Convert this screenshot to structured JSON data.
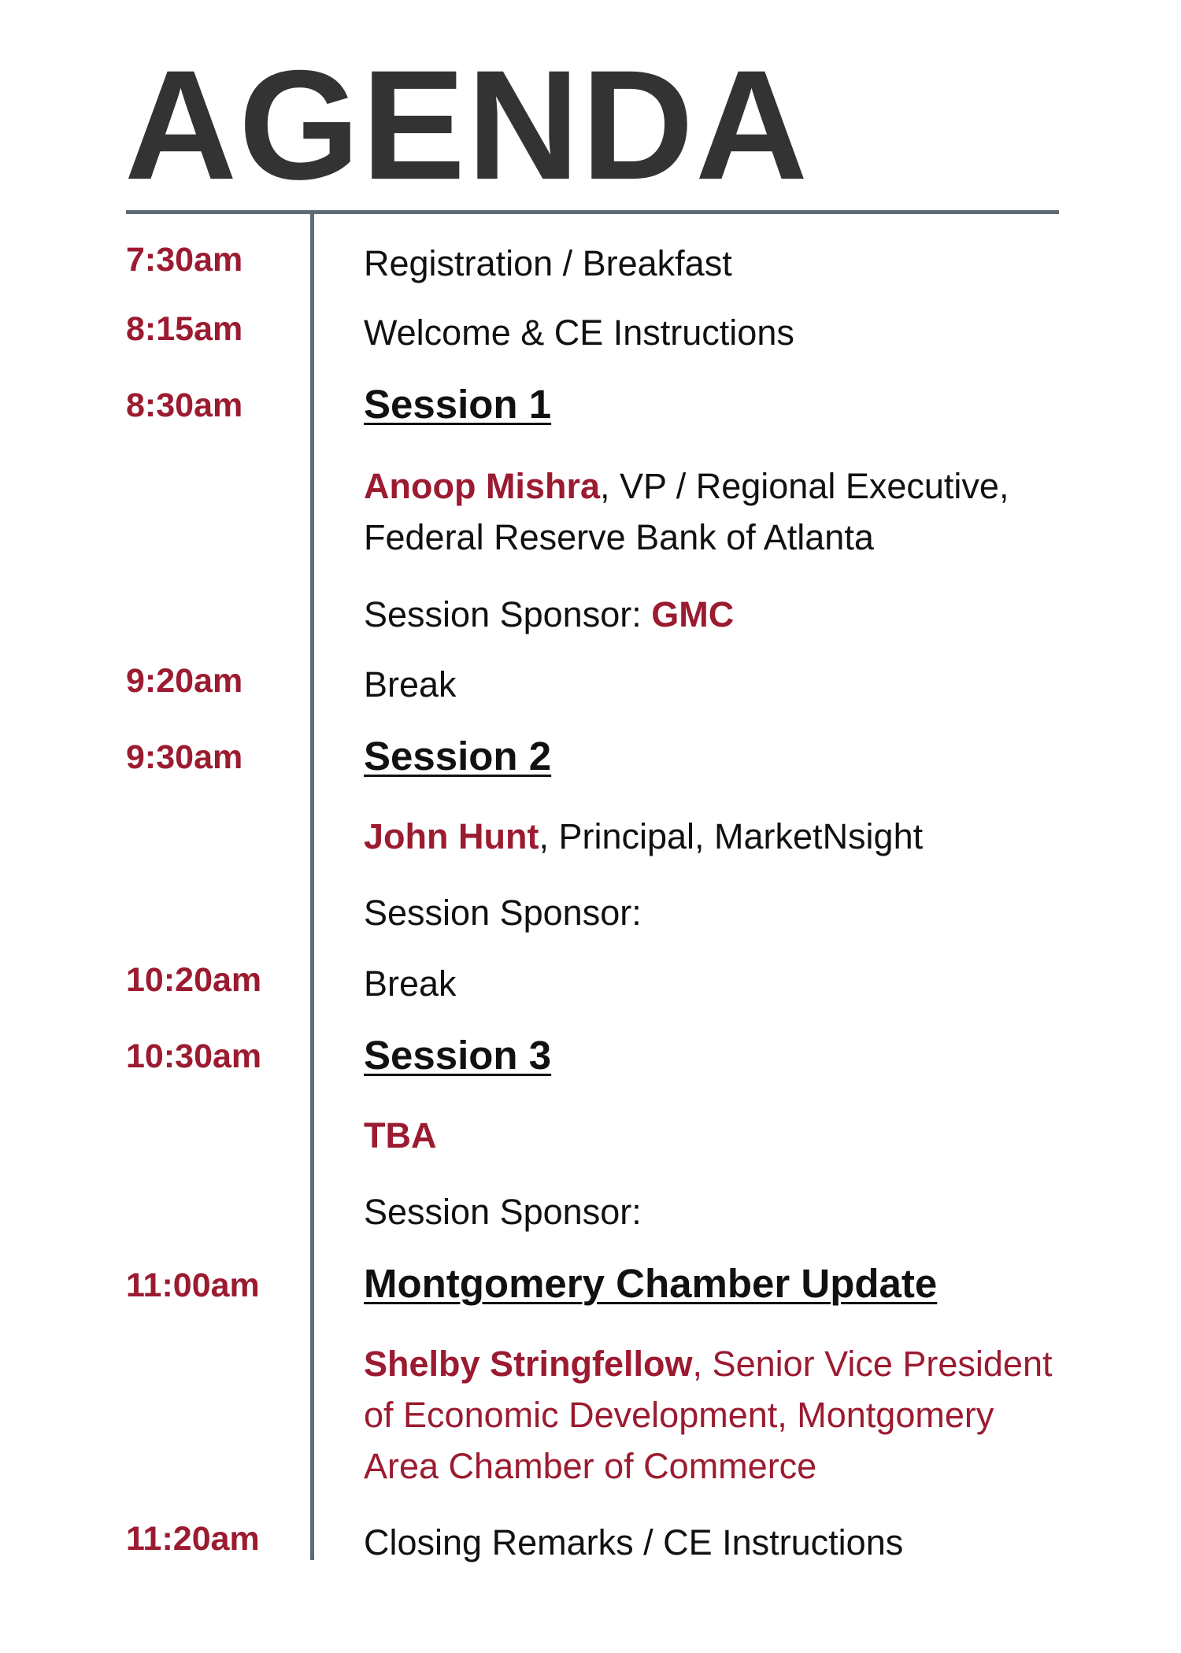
{
  "title": "AGENDA",
  "agenda": [
    {
      "time": "7:30am",
      "title": "Registration / Breakfast"
    },
    {
      "time": "8:15am",
      "title": "Welcome & CE Instructions"
    },
    {
      "time": "8:30am",
      "title": "Session 1",
      "speaker_name": "Anoop Mishra",
      "speaker_detail_line1": ", VP / Regional Executive,",
      "speaker_detail_line2": "Federal Reserve Bank of Atlanta",
      "sponsor_label": "Session Sponsor:",
      "sponsor_name": "GMC"
    },
    {
      "time": "9:20am",
      "title": "Break"
    },
    {
      "time": "9:30am",
      "title": "Session 2",
      "speaker_name": "John Hunt",
      "speaker_detail": ", Principal, MarketNsight",
      "sponsor_label": "Session Sponsor:"
    },
    {
      "time": "10:20am",
      "title": "Break"
    },
    {
      "time": "10:30am",
      "title": "Session 3",
      "speaker_name": "TBA",
      "sponsor_label": "Session Sponsor:"
    },
    {
      "time": "11:00am",
      "title": "Montgomery Chamber Update",
      "speaker_name": "Shelby Stringfellow",
      "speaker_detail_line1": ", Senior Vice President",
      "speaker_detail_line2": "of Economic Development, Montgomery",
      "speaker_detail_line3": "Area Chamber of Commerce"
    },
    {
      "time": "11:20am",
      "title": "Closing Remarks / CE Instructions"
    }
  ],
  "colors": {
    "accent": "#9b1b30",
    "rule": "#606b73",
    "title": "#333333"
  }
}
